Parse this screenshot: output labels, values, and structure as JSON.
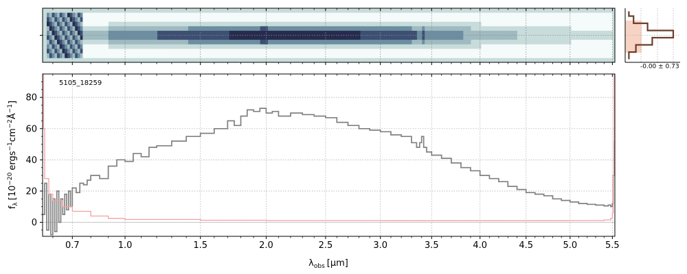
{
  "chart_data": [
    {
      "type": "heatmap",
      "panel": "2d-spectrum",
      "x_range": [
        0.55,
        5.53
      ],
      "y_ticks": [
        0
      ],
      "rows": 12,
      "colormap": [
        "#f5fafa",
        "#c7dcdb",
        "#9fbac0",
        "#6c8ea0",
        "#3d4f73",
        "#272c4f"
      ],
      "background_color": "#c7dcdb"
    },
    {
      "type": "line",
      "panel": "cross-dispersion-profile",
      "annotation": "-0.00 ± 0.73",
      "band_color": "#f7d3c4",
      "line_color": "#6b3d2a",
      "profile": [
        {
          "row": -3,
          "flux": 0.05
        },
        {
          "row": -2,
          "flux": 0.15
        },
        {
          "row": -1,
          "flux": 0.45
        },
        {
          "row": 0,
          "flux": 1.0
        },
        {
          "row": 1,
          "flux": 0.55
        },
        {
          "row": 2,
          "flux": 0.2
        },
        {
          "row": 3,
          "flux": 0.05
        }
      ]
    },
    {
      "type": "line",
      "panel": "1d-spectrum",
      "annotation": "5105_18259",
      "xlabel": "λobs [μm]",
      "xlabel_main": "λ",
      "xlabel_sub": "obs",
      "xlabel_unit": "[μm]",
      "ylabel": "fλ [10−20 ergs−1cm−2Å−1]",
      "ylabel_main": "f",
      "ylabel_sub": "λ",
      "ylabel_unit": "[10",
      "ylabel_exp1": "−20",
      "ylabel_mid1": "ergs",
      "ylabel_exp2": "−1",
      "ylabel_mid2": "cm",
      "ylabel_exp3": "−2",
      "ylabel_mid3": "Å",
      "ylabel_exp4": "−1",
      "ylabel_end": "]",
      "xlim": [
        0.55,
        5.53
      ],
      "ylim": [
        -9,
        95
      ],
      "x_ticks": [
        {
          "value": 0.7,
          "label": "0.7"
        },
        {
          "value": 1.0,
          "label": "1.0"
        },
        {
          "value": 1.5,
          "label": "1.5"
        },
        {
          "value": 2.0,
          "label": "2.0"
        },
        {
          "value": 2.5,
          "label": "2.5"
        },
        {
          "value": 3.0,
          "label": "3.0"
        },
        {
          "value": 3.5,
          "label": "3.5"
        },
        {
          "value": 4.0,
          "label": "4.0"
        },
        {
          "value": 4.5,
          "label": "4.5"
        },
        {
          "value": 5.0,
          "label": "5.0"
        },
        {
          "value": 5.5,
          "label": "5.5"
        }
      ],
      "x_minor_ticks": [
        0.6,
        0.8,
        0.9,
        1.1,
        1.2,
        1.3,
        1.4,
        1.6,
        1.7,
        1.8,
        1.9,
        2.1,
        2.2,
        2.3,
        2.4,
        2.6,
        2.7,
        2.8,
        2.9,
        3.1,
        3.2,
        3.3,
        3.4,
        3.6,
        3.7,
        3.8,
        3.9,
        4.1,
        4.2,
        4.3,
        4.4,
        4.6,
        4.7,
        4.8,
        4.9,
        5.1,
        5.2,
        5.3,
        5.4
      ],
      "y_ticks": [
        0,
        20,
        40,
        60,
        80
      ],
      "grid": true,
      "series": [
        {
          "color": "#808080",
          "points": [
            [
              0.55,
              5
            ],
            [
              0.56,
              25
            ],
            [
              0.57,
              -5
            ],
            [
              0.58,
              18
            ],
            [
              0.59,
              -8
            ],
            [
              0.6,
              15
            ],
            [
              0.61,
              -6
            ],
            [
              0.62,
              20
            ],
            [
              0.63,
              0
            ],
            [
              0.64,
              15
            ],
            [
              0.65,
              5
            ],
            [
              0.66,
              18
            ],
            [
              0.67,
              8
            ],
            [
              0.68,
              20
            ],
            [
              0.69,
              10
            ],
            [
              0.7,
              22
            ],
            [
              0.72,
              19
            ],
            [
              0.74,
              25
            ],
            [
              0.76,
              24
            ],
            [
              0.78,
              27
            ],
            [
              0.8,
              30
            ],
            [
              0.85,
              28
            ],
            [
              0.9,
              36
            ],
            [
              0.95,
              40
            ],
            [
              1.0,
              39
            ],
            [
              1.05,
              44
            ],
            [
              1.1,
              42
            ],
            [
              1.15,
              48
            ],
            [
              1.2,
              49
            ],
            [
              1.3,
              52
            ],
            [
              1.4,
              55
            ],
            [
              1.5,
              57
            ],
            [
              1.6,
              60
            ],
            [
              1.7,
              65
            ],
            [
              1.75,
              62
            ],
            [
              1.8,
              68
            ],
            [
              1.85,
              72
            ],
            [
              1.9,
              71
            ],
            [
              1.95,
              73
            ],
            [
              2.0,
              70
            ],
            [
              2.05,
              71
            ],
            [
              2.1,
              68
            ],
            [
              2.2,
              70
            ],
            [
              2.3,
              69
            ],
            [
              2.4,
              68
            ],
            [
              2.5,
              67
            ],
            [
              2.6,
              64
            ],
            [
              2.7,
              62
            ],
            [
              2.8,
              60
            ],
            [
              2.9,
              59
            ],
            [
              3.0,
              58
            ],
            [
              3.1,
              56
            ],
            [
              3.2,
              55
            ],
            [
              3.3,
              51
            ],
            [
              3.35,
              48
            ],
            [
              3.38,
              51
            ],
            [
              3.4,
              55
            ],
            [
              3.42,
              48
            ],
            [
              3.45,
              45
            ],
            [
              3.5,
              43
            ],
            [
              3.6,
              41
            ],
            [
              3.7,
              38
            ],
            [
              3.8,
              35
            ],
            [
              3.9,
              33
            ],
            [
              4.0,
              30
            ],
            [
              4.1,
              28
            ],
            [
              4.2,
              26
            ],
            [
              4.3,
              23
            ],
            [
              4.4,
              21
            ],
            [
              4.5,
              19
            ],
            [
              4.6,
              18
            ],
            [
              4.7,
              17
            ],
            [
              4.8,
              15
            ],
            [
              4.9,
              14
            ],
            [
              5.0,
              13
            ],
            [
              5.1,
              12
            ],
            [
              5.2,
              11.5
            ],
            [
              5.3,
              11
            ],
            [
              5.4,
              10.5
            ],
            [
              5.45,
              11
            ],
            [
              5.48,
              10
            ],
            [
              5.5,
              12
            ],
            [
              5.51,
              30
            ],
            [
              5.52,
              52
            ],
            [
              5.53,
              52
            ]
          ]
        },
        {
          "color": "#f2a0a0",
          "points": [
            [
              0.55,
              95
            ],
            [
              0.555,
              60
            ],
            [
              0.56,
              28
            ],
            [
              0.58,
              18
            ],
            [
              0.6,
              14
            ],
            [
              0.65,
              10
            ],
            [
              0.7,
              7
            ],
            [
              0.8,
              4
            ],
            [
              0.9,
              2.5
            ],
            [
              1.0,
              1.8
            ],
            [
              1.5,
              1.3
            ],
            [
              2.0,
              1.1
            ],
            [
              3.0,
              1
            ],
            [
              4.0,
              1
            ],
            [
              5.0,
              1.1
            ],
            [
              5.4,
              1.5
            ],
            [
              5.48,
              2.5
            ],
            [
              5.5,
              6
            ],
            [
              5.51,
              30
            ],
            [
              5.52,
              95
            ]
          ]
        }
      ]
    }
  ]
}
